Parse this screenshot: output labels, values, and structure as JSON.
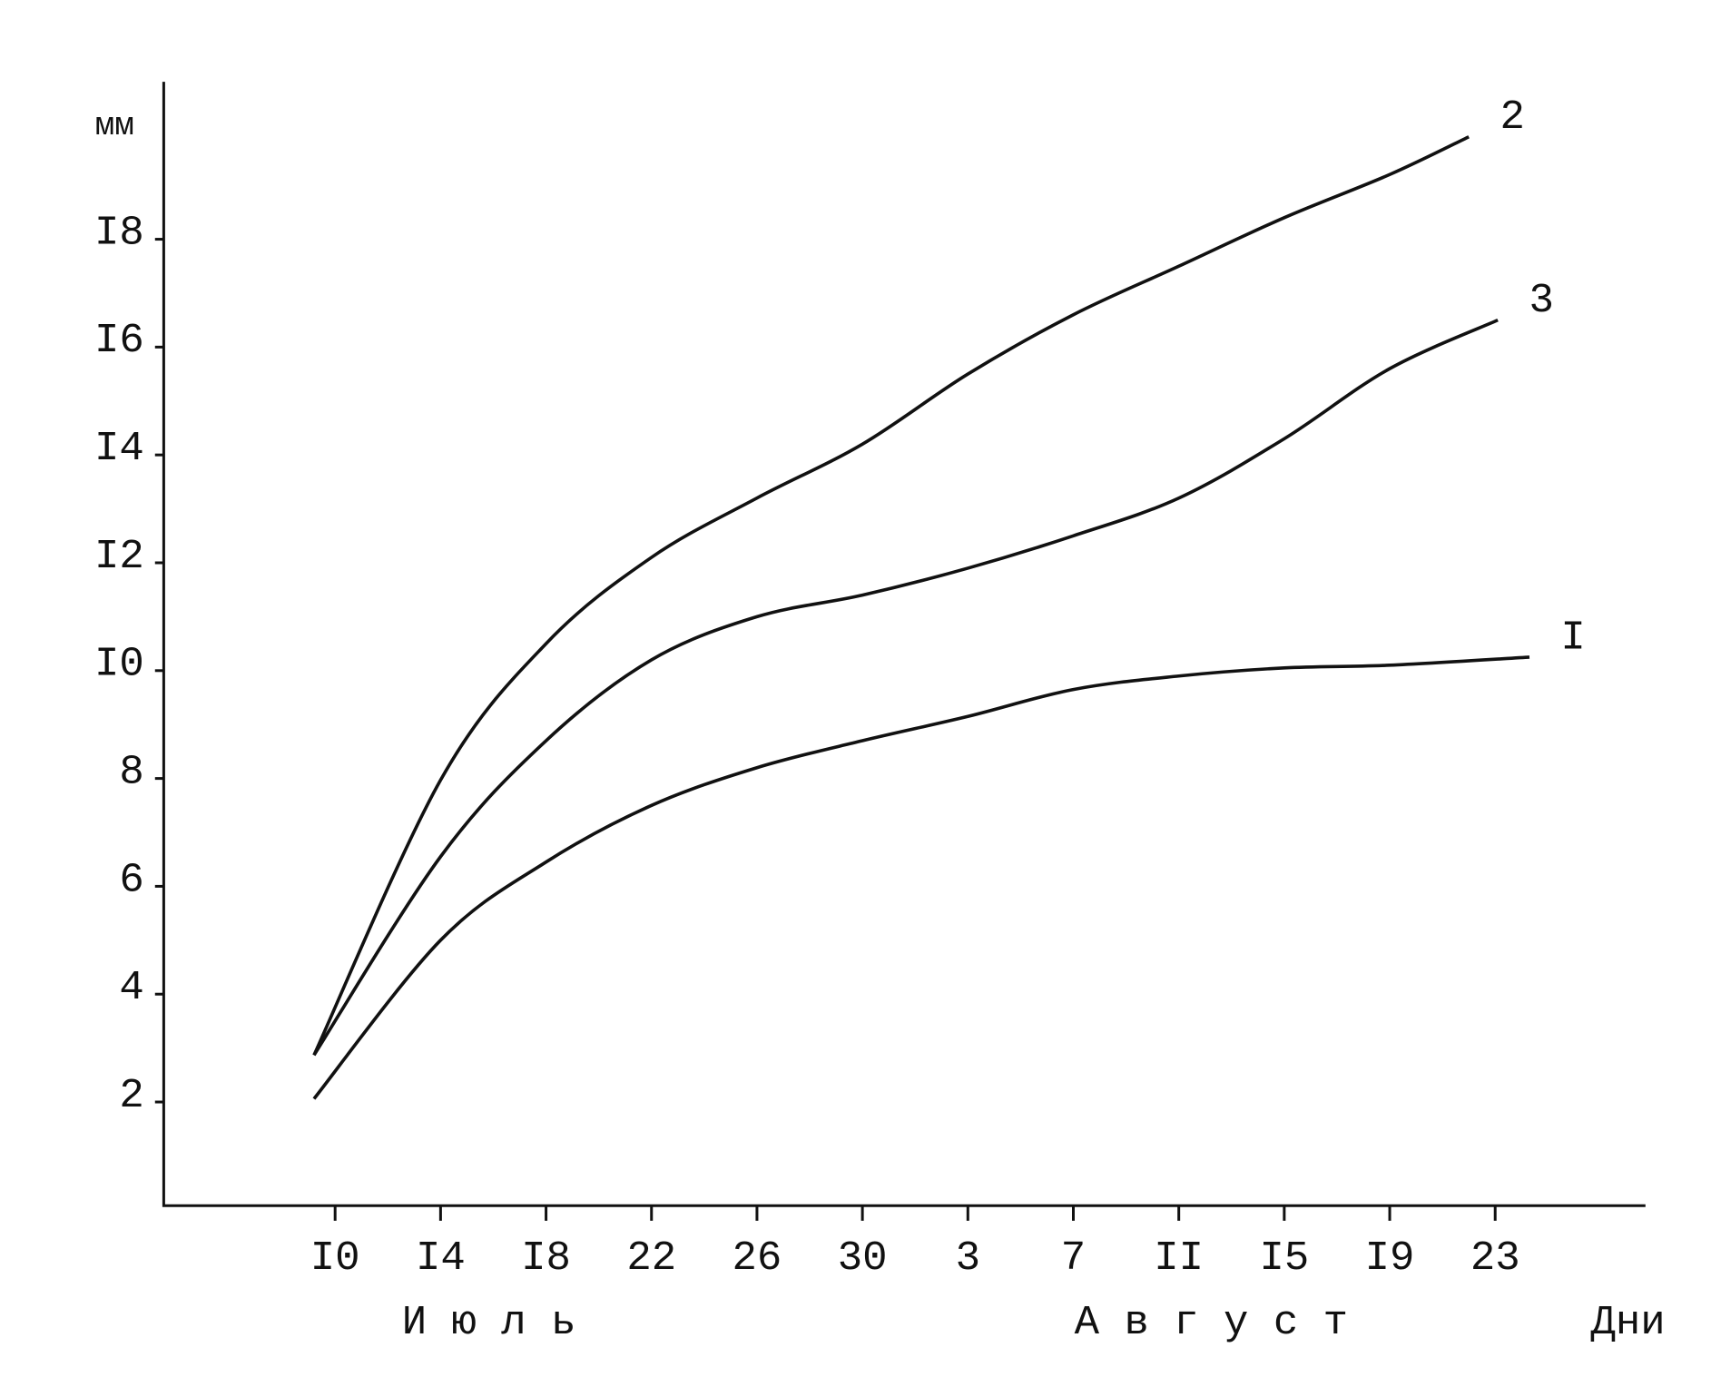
{
  "chart_data": {
    "type": "line",
    "ylabel": "мм",
    "xlabel": "Дни",
    "months": [
      "И ю л ь",
      "А в г у с т"
    ],
    "ylim": [
      0,
      21
    ],
    "yticks": [
      2,
      4,
      6,
      8,
      {
        "value": 10,
        "label": "I0"
      },
      {
        "value": 12,
        "label": "I2"
      },
      {
        "value": 14,
        "label": "I4"
      },
      {
        "value": 16,
        "label": "I6"
      },
      {
        "value": 18,
        "label": "I8"
      }
    ],
    "xlim": [
      3.5,
      59.7
    ],
    "xticks": [
      {
        "value": 10,
        "label": "I0"
      },
      {
        "value": 14,
        "label": "I4"
      },
      {
        "value": 18,
        "label": "I8"
      },
      22,
      26,
      30,
      {
        "value": 34,
        "label": "3"
      },
      {
        "value": 38,
        "label": "7"
      },
      {
        "value": 42,
        "label": "II"
      },
      {
        "value": 46,
        "label": "I5"
      },
      {
        "value": 50,
        "label": "I9"
      },
      {
        "value": 54,
        "label": "23"
      }
    ],
    "series": [
      {
        "name": "I",
        "color": "#111111",
        "x": [
          9.2,
          14,
          18,
          22,
          26,
          30,
          34,
          38,
          42,
          46,
          50,
          55.3
        ],
        "values": [
          2.06,
          5.0,
          6.45,
          7.5,
          8.2,
          8.7,
          9.15,
          9.65,
          9.9,
          10.05,
          10.1,
          10.25
        ]
      },
      {
        "name": "2",
        "color": "#111111",
        "x": [
          9.2,
          14,
          18,
          22,
          26,
          30,
          34,
          38,
          42,
          46,
          50,
          53
        ],
        "values": [
          2.87,
          7.97,
          10.5,
          12.1,
          13.2,
          14.2,
          15.5,
          16.6,
          17.5,
          18.4,
          19.2,
          19.9
        ]
      },
      {
        "name": "3",
        "color": "#111111",
        "x": [
          9.2,
          14,
          18,
          22,
          26,
          30,
          34,
          38,
          42,
          46,
          50,
          54.1
        ],
        "values": [
          2.87,
          6.55,
          8.7,
          10.2,
          11.0,
          11.4,
          11.9,
          12.5,
          13.2,
          14.3,
          15.6,
          16.5
        ]
      }
    ]
  }
}
